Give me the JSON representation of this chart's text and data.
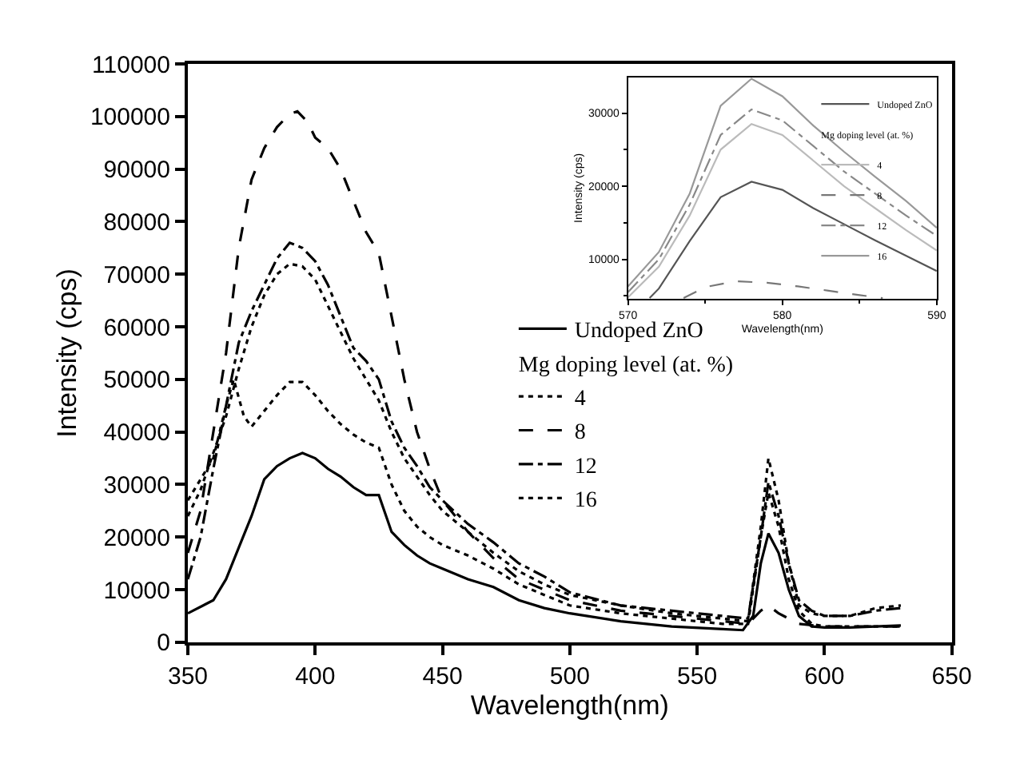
{
  "chart_data": [
    {
      "type": "line",
      "xlabel": "Wavelength(nm)",
      "ylabel": "Intensity (cps)",
      "xlim": [
        350,
        650
      ],
      "xticks": [
        350,
        400,
        450,
        500,
        550,
        600,
        650
      ],
      "ylim": [
        0,
        110000
      ],
      "yticks": [
        0,
        10000,
        20000,
        30000,
        40000,
        50000,
        60000,
        70000,
        80000,
        90000,
        100000,
        110000
      ],
      "legend": "right",
      "legend_title": "Mg doping level (at. %)",
      "marker": "none",
      "series": [
        {
          "name": "Undoped ZnO",
          "color": "#000000",
          "line_style": "solid",
          "x": [
            350,
            360,
            365,
            370,
            375,
            380,
            385,
            390,
            395,
            400,
            405,
            410,
            415,
            420,
            425,
            430,
            435,
            440,
            445,
            450,
            460,
            470,
            480,
            490,
            500,
            520,
            540,
            560,
            568,
            572,
            575,
            578,
            582,
            586,
            590,
            595,
            600,
            610,
            620,
            630
          ],
          "values": [
            5500,
            8000,
            12000,
            18000,
            24000,
            31000,
            33500,
            35000,
            36000,
            35000,
            33000,
            31500,
            29500,
            28000,
            28000,
            21000,
            18500,
            16500,
            15000,
            14000,
            12000,
            10500,
            8000,
            6500,
            5500,
            4000,
            3000,
            2500,
            2300,
            5000,
            15000,
            20700,
            17000,
            10000,
            5000,
            3000,
            2800,
            2800,
            3000,
            3200
          ]
        },
        {
          "name": "4",
          "color": "#000000",
          "line_style": "dotted",
          "x": [
            350,
            355,
            360,
            365,
            368,
            372,
            375,
            380,
            385,
            390,
            395,
            400,
            405,
            410,
            415,
            420,
            425,
            430,
            435,
            440,
            445,
            450,
            460,
            470,
            480,
            490,
            500,
            520,
            540,
            560,
            570,
            575,
            578,
            582,
            586,
            590,
            595,
            600,
            610,
            620,
            630
          ],
          "values": [
            27000,
            31000,
            35000,
            45000,
            50000,
            43000,
            41000,
            44000,
            47000,
            49500,
            49500,
            47000,
            44000,
            41500,
            39500,
            38000,
            37000,
            30000,
            25000,
            22000,
            20000,
            18500,
            16500,
            14000,
            11000,
            9000,
            7000,
            5500,
            4500,
            3500,
            3500,
            20000,
            28500,
            22000,
            12000,
            6000,
            3500,
            3000,
            3000,
            3000,
            3000
          ]
        },
        {
          "name": "8",
          "color": "#000000",
          "line_style": "dashed",
          "x": [
            350,
            355,
            360,
            365,
            370,
            375,
            380,
            385,
            390,
            393,
            397,
            400,
            405,
            410,
            415,
            420,
            425,
            430,
            435,
            440,
            445,
            450,
            460,
            470,
            480,
            490,
            500,
            520,
            540,
            560,
            570,
            575,
            578,
            582,
            590,
            600,
            620,
            630
          ],
          "values": [
            17000,
            25000,
            40000,
            55000,
            75000,
            88000,
            94000,
            98000,
            100500,
            101000,
            99000,
            96000,
            94000,
            90000,
            84000,
            78000,
            74000,
            62000,
            50000,
            40000,
            33000,
            27000,
            21000,
            16000,
            12000,
            10000,
            8000,
            6000,
            5000,
            4000,
            3500,
            6000,
            7000,
            5500,
            3500,
            3000,
            3000,
            3000
          ]
        },
        {
          "name": "12",
          "color": "#000000",
          "line_style": "dashdot",
          "x": [
            350,
            355,
            360,
            365,
            370,
            375,
            380,
            385,
            390,
            395,
            400,
            405,
            410,
            415,
            420,
            425,
            430,
            435,
            440,
            445,
            450,
            460,
            470,
            480,
            490,
            500,
            520,
            540,
            560,
            570,
            575,
            578,
            582,
            586,
            590,
            595,
            600,
            610,
            620,
            630
          ],
          "values": [
            12000,
            20000,
            33000,
            45000,
            57000,
            63000,
            68000,
            73000,
            76000,
            75000,
            72500,
            68000,
            62000,
            56000,
            53500,
            50000,
            42000,
            37000,
            33500,
            29500,
            27000,
            22500,
            19000,
            15000,
            12500,
            9500,
            7000,
            6000,
            5000,
            4500,
            20000,
            30500,
            24000,
            15000,
            8000,
            6000,
            5000,
            5000,
            6000,
            6500
          ]
        },
        {
          "name": "16",
          "color": "#000000",
          "line_style": "dotted",
          "x": [
            350,
            355,
            360,
            365,
            370,
            375,
            380,
            385,
            390,
            395,
            400,
            405,
            410,
            415,
            420,
            425,
            430,
            435,
            440,
            445,
            450,
            460,
            470,
            480,
            490,
            500,
            520,
            540,
            560,
            570,
            575,
            578,
            582,
            586,
            590,
            595,
            600,
            610,
            620,
            630
          ],
          "values": [
            24000,
            29000,
            36000,
            43000,
            52000,
            60000,
            66000,
            70000,
            72000,
            71500,
            69000,
            64000,
            59000,
            54000,
            50000,
            46000,
            40000,
            35000,
            31500,
            28000,
            25000,
            21000,
            17000,
            13500,
            11000,
            9000,
            7000,
            5500,
            4500,
            4000,
            22000,
            35000,
            27000,
            15000,
            7000,
            5500,
            5000,
            5000,
            6500,
            7000
          ]
        }
      ]
    },
    {
      "type": "line",
      "xlabel": "Wavelength(nm)",
      "ylabel": "Intensity (cps)",
      "xlim": [
        570,
        590
      ],
      "xticks": [
        570,
        580,
        590
      ],
      "ylim": [
        4600,
        34900
      ],
      "yticks": [
        10000,
        20000,
        30000
      ],
      "legend": "top right",
      "legend_title": "Mg doping level (at. %)",
      "marker": "none",
      "series": [
        {
          "name": "Undoped ZnO",
          "color": "#555555",
          "line_style": "solid",
          "x": [
            571.4,
            572,
            574,
            576,
            578,
            580,
            582,
            584,
            586,
            588,
            590
          ],
          "values": [
            4700,
            6000,
            12500,
            18500,
            20600,
            19500,
            17000,
            14800,
            12600,
            10500,
            8400
          ]
        },
        {
          "name": "4",
          "color": "#bbbbbb",
          "line_style": "solid",
          "x": [
            570,
            572,
            574,
            576,
            578,
            580,
            582,
            584,
            586,
            588,
            590
          ],
          "values": [
            4800,
            9000,
            16000,
            25000,
            28500,
            27000,
            23500,
            20000,
            17000,
            14000,
            11200
          ]
        },
        {
          "name": "8",
          "color": "#777777",
          "line_style": "dashed",
          "x": [
            573.6,
            575,
            577,
            579,
            581,
            583,
            585,
            586.5
          ],
          "values": [
            4700,
            6200,
            7000,
            6800,
            6300,
            5700,
            5100,
            4700
          ]
        },
        {
          "name": "12",
          "color": "#888888",
          "line_style": "dashdot",
          "x": [
            570,
            572,
            574,
            576,
            578,
            580,
            582,
            584,
            586,
            588,
            590
          ],
          "values": [
            5500,
            10000,
            17500,
            27000,
            30500,
            29000,
            25500,
            22000,
            19000,
            16000,
            13200
          ]
        },
        {
          "name": "16",
          "color": "#999999",
          "line_style": "solid",
          "x": [
            570,
            572,
            574,
            576,
            578,
            580,
            582,
            584,
            586,
            588,
            590
          ],
          "values": [
            6300,
            11000,
            19000,
            31000,
            34700,
            32300,
            28300,
            24700,
            21300,
            18000,
            14300
          ]
        }
      ]
    }
  ]
}
